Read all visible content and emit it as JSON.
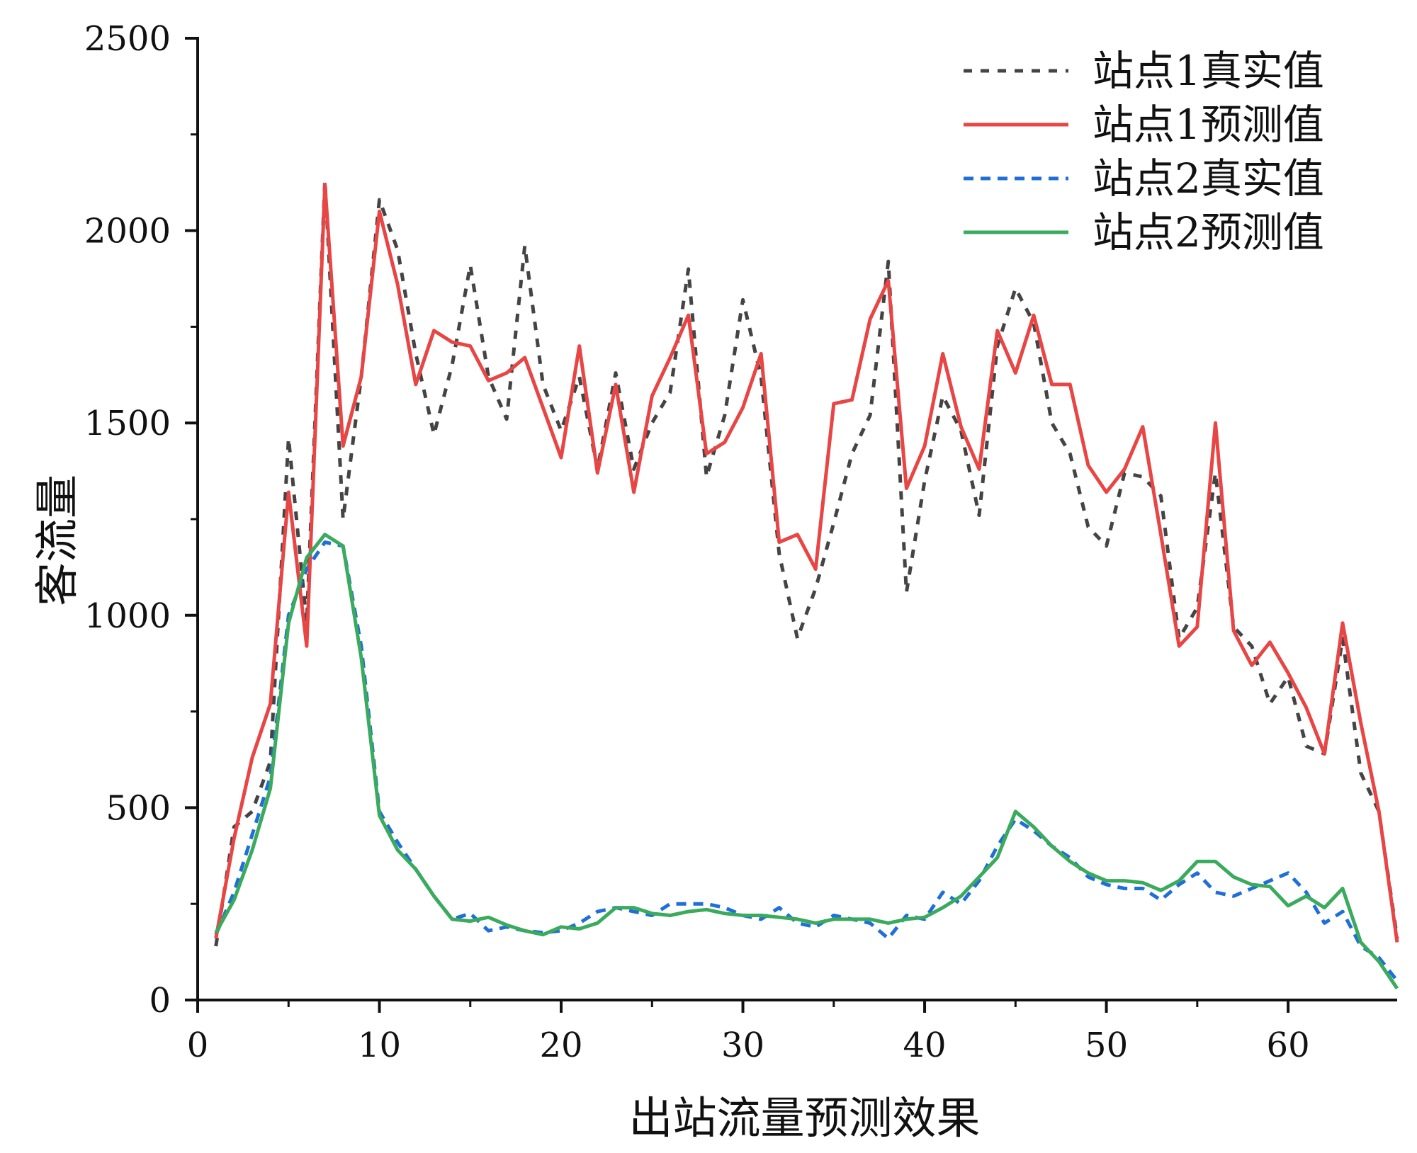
{
  "chart_data": {
    "type": "line",
    "title": "",
    "xlabel": "出站流量预测效果",
    "ylabel": "客流量",
    "xlim": [
      0,
      66
    ],
    "ylim": [
      0,
      2500
    ],
    "x_ticks": [
      0,
      10,
      20,
      30,
      40,
      50,
      60
    ],
    "y_ticks": [
      0,
      500,
      1000,
      1500,
      2000,
      2500
    ],
    "grid": false,
    "legend_position": "top-right",
    "x": [
      1,
      2,
      3,
      4,
      5,
      6,
      7,
      8,
      9,
      10,
      11,
      12,
      13,
      14,
      15,
      16,
      17,
      18,
      19,
      20,
      21,
      22,
      23,
      24,
      25,
      26,
      27,
      28,
      29,
      30,
      31,
      32,
      33,
      34,
      35,
      36,
      37,
      38,
      39,
      40,
      41,
      42,
      43,
      44,
      45,
      46,
      47,
      48,
      49,
      50,
      51,
      52,
      53,
      54,
      55,
      56,
      57,
      58,
      59,
      60,
      61,
      62,
      63,
      64,
      65,
      66
    ],
    "series": [
      {
        "name": "站点1真实值",
        "color": "#444444",
        "dash": "dotted",
        "values": [
          140,
          450,
          490,
          620,
          1460,
          980,
          2130,
          1250,
          1620,
          2080,
          1950,
          1680,
          1470,
          1650,
          1910,
          1620,
          1510,
          1960,
          1600,
          1480,
          1620,
          1380,
          1630,
          1380,
          1500,
          1580,
          1900,
          1360,
          1520,
          1820,
          1620,
          1160,
          940,
          1070,
          1240,
          1420,
          1520,
          1920,
          1060,
          1350,
          1570,
          1480,
          1260,
          1700,
          1850,
          1760,
          1500,
          1420,
          1230,
          1180,
          1370,
          1360,
          1310,
          940,
          1020,
          1370,
          970,
          920,
          770,
          840,
          660,
          640,
          940,
          590,
          490,
          160
        ],
        "label_suffix": ""
      },
      {
        "name": "站点1预测值",
        "color": "#e84545",
        "dash": "solid",
        "values": [
          160,
          420,
          630,
          770,
          1320,
          920,
          2120,
          1440,
          1620,
          2050,
          1860,
          1600,
          1740,
          1710,
          1700,
          1610,
          1630,
          1670,
          1540,
          1410,
          1700,
          1370,
          1600,
          1320,
          1570,
          1670,
          1780,
          1420,
          1450,
          1540,
          1680,
          1190,
          1210,
          1120,
          1550,
          1560,
          1770,
          1870,
          1330,
          1440,
          1680,
          1490,
          1380,
          1740,
          1630,
          1780,
          1600,
          1600,
          1390,
          1320,
          1380,
          1490,
          1210,
          920,
          970,
          1500,
          960,
          870,
          930,
          850,
          760,
          640,
          980,
          720,
          490,
          150
        ],
        "label_suffix": ""
      },
      {
        "name": "站点2真实值",
        "color": "#1f6fd6",
        "dash": "dashed",
        "values": [
          170,
          280,
          430,
          580,
          1000,
          1120,
          1190,
          1180,
          920,
          490,
          410,
          340,
          270,
          210,
          225,
          180,
          190,
          180,
          175,
          180,
          200,
          230,
          240,
          230,
          220,
          250,
          250,
          250,
          240,
          220,
          210,
          240,
          200,
          190,
          220,
          210,
          200,
          160,
          220,
          210,
          280,
          250,
          310,
          400,
          470,
          440,
          400,
          370,
          320,
          300,
          290,
          290,
          260,
          300,
          330,
          280,
          270,
          290,
          310,
          330,
          280,
          200,
          230,
          140,
          110,
          50
        ],
        "label_suffix": ""
      },
      {
        "name": "站点2预测值",
        "color": "#3aaa5c",
        "dash": "solid",
        "values": [
          175,
          260,
          390,
          550,
          980,
          1150,
          1210,
          1180,
          890,
          480,
          390,
          340,
          270,
          210,
          205,
          215,
          195,
          180,
          170,
          190,
          185,
          200,
          240,
          240,
          225,
          220,
          230,
          235,
          225,
          220,
          220,
          215,
          210,
          200,
          210,
          210,
          210,
          200,
          210,
          215,
          240,
          270,
          320,
          370,
          490,
          450,
          400,
          360,
          330,
          310,
          310,
          305,
          285,
          310,
          360,
          360,
          320,
          300,
          295,
          245,
          270,
          240,
          290,
          150,
          100,
          30
        ]
      }
    ]
  }
}
